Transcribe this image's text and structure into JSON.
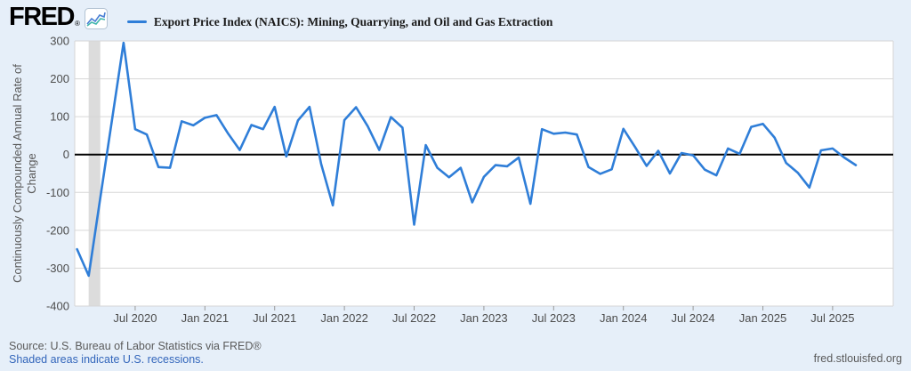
{
  "header": {
    "logo_text": "FRED",
    "logo_registered": "®",
    "legend_label": "Export Price Index (NAICS): Mining, Quarrying, and Oil and Gas Extraction"
  },
  "footer": {
    "source_line": "Source: U.S. Bureau of Labor Statistics via FRED®",
    "recession_note": "Shaded areas indicate U.S. recessions.",
    "site_link": "fred.stlouisfed.org"
  },
  "colors": {
    "line": "#2f7ed8",
    "grid": "#d6d6d6",
    "zero_line": "#000000",
    "recession_band": "#dcdcdc",
    "plot_bg": "#ffffff",
    "page_bg": "#e6eff9",
    "tick_text": "#4d4d4d"
  },
  "chart_data": {
    "type": "line",
    "title": "Export Price Index (NAICS): Mining, Quarrying, and Oil and Gas Extraction",
    "ylabel": "Continuously Compounded Annual Rate of Change",
    "ylabel_lines": [
      "Continuously Compounded Annual Rate of",
      "Change"
    ],
    "ylim": [
      -400,
      300
    ],
    "yticks": [
      300,
      200,
      100,
      0,
      -100,
      -200,
      -300,
      -400
    ],
    "ytick_labels": [
      "300",
      "200",
      "100",
      "0",
      "-100",
      "-200",
      "-300",
      "-400"
    ],
    "xtick_labels": [
      "Jul 2020",
      "Jan 2021",
      "Jul 2021",
      "Jan 2022",
      "Jul 2022",
      "Jan 2023",
      "Jul 2023",
      "Jan 2024",
      "Jul 2024",
      "Jan 2025",
      "Jul 2025"
    ],
    "first_tick_index": 5,
    "tick_step": 6,
    "grid": true,
    "zero_line": true,
    "legend_position": "top",
    "start_period": "Feb 2020",
    "end_period": "Sep 2025",
    "frequency": "monthly",
    "recession_band_month_indexes": [
      1,
      2
    ],
    "values": [
      -250,
      -320,
      -115,
      90,
      295,
      67,
      53,
      -33,
      -35,
      88,
      77,
      97,
      104,
      55,
      12,
      78,
      67,
      126,
      -5,
      90,
      126,
      -25,
      -134,
      91,
      125,
      75,
      12,
      99,
      71,
      -185,
      25,
      -35,
      -60,
      -35,
      -126,
      -59,
      -28,
      -31,
      -8,
      -130,
      67,
      55,
      58,
      53,
      -33,
      -51,
      -39,
      68,
      20,
      -30,
      10,
      -50,
      4,
      -2,
      -40,
      -55,
      16,
      2,
      73,
      81,
      45,
      -22,
      -48,
      -87,
      11,
      16,
      -8,
      -28
    ]
  }
}
